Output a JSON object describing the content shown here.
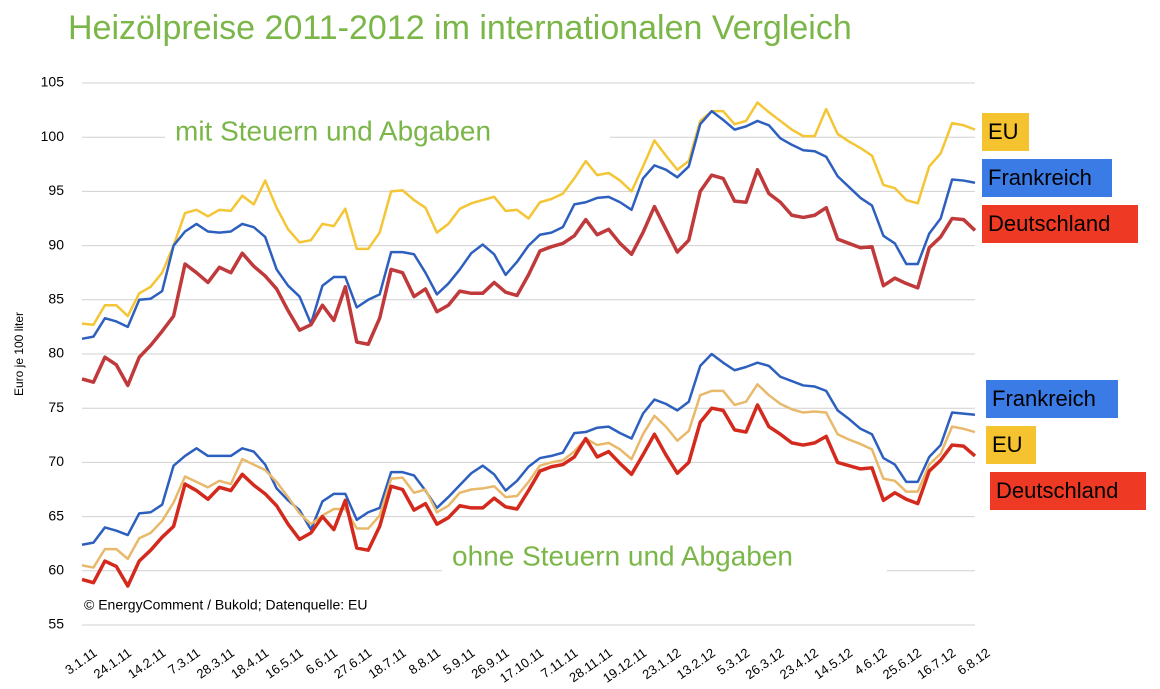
{
  "chart_data": {
    "type": "line",
    "title": "Heizölpreise 2011-2012 im internationalen Vergleich",
    "y_label": "Euro je 100 liter",
    "annotations": [
      "mit Steuern und Abgaben",
      "ohne Steuern und Abgaben",
      "© EnergyComment / Bukold; Datenquelle: EU"
    ],
    "categories": [
      "3.1.11",
      null,
      null,
      "24.1.11",
      null,
      null,
      "14.2.11",
      null,
      null,
      "7.3.11",
      null,
      null,
      "28.3.11",
      null,
      null,
      "18.4.11",
      null,
      null,
      "16.5.11",
      null,
      null,
      "6.6.11",
      null,
      null,
      "27.6.11",
      null,
      null,
      "18.7.11",
      null,
      null,
      "8.8.11",
      null,
      null,
      "5.9.11",
      null,
      null,
      "26.9.11",
      null,
      null,
      "17.10.11",
      null,
      null,
      "7.11.11",
      null,
      null,
      "28.11.11",
      null,
      null,
      "19.12.11",
      null,
      null,
      "23.1.12",
      null,
      null,
      "13.2.12",
      null,
      null,
      "5.3.12",
      null,
      null,
      "26.3.12",
      null,
      null,
      "23.4.12",
      null,
      null,
      "14.5.12",
      null,
      null,
      "4.6.12",
      null,
      null,
      "25.6.12",
      null,
      null,
      "16.7.12",
      null,
      null,
      "6.8.12"
    ],
    "ylim": [
      55,
      105
    ],
    "yticks": [
      55,
      60,
      65,
      70,
      75,
      80,
      85,
      90,
      95,
      100,
      105
    ],
    "grid": true,
    "series": [
      {
        "name": "EU",
        "color": "#f4c534",
        "legend_color": "#f5c230",
        "values": [
          82.8,
          82.7,
          84.5,
          84.5,
          83.5,
          85.6,
          86.2,
          87.5,
          90,
          93,
          93.3,
          92.7,
          93.3,
          93.2,
          94.6,
          93.8,
          96,
          93.5,
          91.5,
          90.3,
          90.5,
          92,
          91.8,
          93.4,
          89.7,
          89.7,
          91.2,
          95,
          95.1,
          94.2,
          93.5,
          91.2,
          92,
          93.4,
          93.9,
          94.2,
          94.5,
          93.2,
          93.3,
          92.5,
          94,
          94.3,
          94.8,
          96.2,
          97.8,
          96.5,
          96.7,
          96,
          95,
          97.3,
          99.7,
          98.3,
          97,
          97.8,
          101.5,
          102.4,
          102.4,
          101.2,
          101.5,
          103.2,
          102.3,
          101.5,
          100.7,
          100.1,
          100.1,
          102.6,
          100.3,
          99.6,
          99,
          98.3,
          95.6,
          95.3,
          94.2,
          93.9,
          97.3,
          98.5,
          101.3,
          101.1,
          100.7
        ]
      },
      {
        "name": "Frankreich",
        "color": "#2d5fbf",
        "legend_color": "#3b7be6",
        "values": [
          81.4,
          81.6,
          83.3,
          83,
          82.5,
          85,
          85.1,
          85.8,
          90,
          91.3,
          92,
          91.3,
          91.2,
          91.3,
          92,
          91.7,
          90.8,
          87.8,
          86.3,
          85.3,
          82.8,
          86.3,
          87.1,
          87.1,
          84.3,
          85,
          85.5,
          89.4,
          89.4,
          89.2,
          87.5,
          85.5,
          86.5,
          87.8,
          89.3,
          90.1,
          89.2,
          87.3,
          88.5,
          90,
          91,
          91.2,
          91.7,
          93.8,
          94,
          94.4,
          94.5,
          94,
          93.3,
          96.2,
          97.4,
          97,
          96.3,
          97.3,
          101.2,
          102.4,
          101.6,
          100.7,
          101,
          101.5,
          101.1,
          99.9,
          99.3,
          98.8,
          98.7,
          98.2,
          96.4,
          95.4,
          94.4,
          93.7,
          90.9,
          90.2,
          88.3,
          88.3,
          91.1,
          92.5,
          96.1,
          96,
          95.8
        ]
      },
      {
        "name": "Deutschland",
        "color": "#c0393b",
        "legend_color": "#ee3a24",
        "values": [
          77.7,
          77.4,
          79.7,
          79,
          77.1,
          79.7,
          80.8,
          82.1,
          83.5,
          88.3,
          87.5,
          86.6,
          88,
          87.5,
          89.3,
          88.1,
          87.2,
          86,
          84,
          82.2,
          82.7,
          84.5,
          83.1,
          86.2,
          81.1,
          80.9,
          83.3,
          87.8,
          87.5,
          85.3,
          86,
          83.9,
          84.5,
          85.8,
          85.6,
          85.6,
          86.6,
          85.7,
          85.4,
          87.3,
          89.5,
          89.9,
          90.2,
          90.9,
          92.4,
          91,
          91.5,
          90.2,
          89.2,
          91.2,
          93.6,
          91.5,
          89.4,
          90.5,
          95,
          96.5,
          96.2,
          94.1,
          94,
          97,
          94.8,
          94,
          92.8,
          92.6,
          92.8,
          93.5,
          90.6,
          90.2,
          89.8,
          89.9,
          86.3,
          87,
          86.5,
          86.1,
          89.8,
          90.8,
          92.5,
          92.4,
          91.4
        ]
      },
      {
        "name": "Frankreich",
        "color": "#2d5fbf",
        "legend_color": "#3b7be6",
        "values": [
          62.4,
          62.6,
          64,
          63.7,
          63.3,
          65.3,
          65.4,
          66.1,
          69.7,
          70.6,
          71.3,
          70.6,
          70.6,
          70.6,
          71.3,
          71,
          69.8,
          67.6,
          66.5,
          65.6,
          63.8,
          66.4,
          67.1,
          67.1,
          64.7,
          65.4,
          65.8,
          69.1,
          69.1,
          68.8,
          67.4,
          65.8,
          66.8,
          67.9,
          69,
          69.7,
          68.9,
          67.4,
          68.3,
          69.6,
          70.4,
          70.6,
          70.9,
          72.7,
          72.8,
          73.2,
          73.3,
          72.7,
          72.2,
          74.5,
          75.8,
          75.4,
          74.8,
          75.6,
          78.9,
          80,
          79.2,
          78.5,
          78.8,
          79.2,
          78.9,
          77.9,
          77.5,
          77.1,
          77.0,
          76.6,
          74.8,
          74,
          73.1,
          72.6,
          70.4,
          69.8,
          68.2,
          68.2,
          70.5,
          71.6,
          74.6,
          74.5,
          74.4
        ]
      },
      {
        "name": "EU",
        "color": "#e8b96b",
        "legend_color": "#f5c230",
        "values": [
          60.5,
          60.3,
          62,
          62,
          61.1,
          63,
          63.5,
          64.6,
          66.3,
          68.7,
          68.2,
          67.7,
          68.3,
          68,
          70.3,
          69.8,
          69.3,
          68.2,
          66.8,
          65.3,
          64.3,
          65.1,
          65.7,
          65.7,
          63.9,
          63.9,
          65.1,
          68.5,
          68.6,
          67.2,
          67.5,
          65.4,
          66,
          67.2,
          67.5,
          67.6,
          67.8,
          66.8,
          66.9,
          68.2,
          69.7,
          70,
          70.2,
          71,
          72.2,
          71.6,
          71.8,
          71.2,
          70.3,
          72.6,
          74.3,
          73.3,
          72,
          72.9,
          76.2,
          76.6,
          76.6,
          75.3,
          75.6,
          77.2,
          76.2,
          75.4,
          74.9,
          74.6,
          74.7,
          74.6,
          72.6,
          72.1,
          71.7,
          71.2,
          68.5,
          68.3,
          67.3,
          67.3,
          69.8,
          70.8,
          73.3,
          73.1,
          72.8
        ]
      },
      {
        "name": "Deutschland",
        "color": "#d42a1e",
        "legend_color": "#ee3a24",
        "values": [
          59.2,
          58.9,
          60.9,
          60.4,
          58.6,
          60.9,
          61.9,
          63.1,
          64.1,
          68,
          67.4,
          66.6,
          67.7,
          67.4,
          68.9,
          67.9,
          67.1,
          66,
          64.3,
          62.9,
          63.5,
          65,
          63.8,
          66.5,
          62.1,
          61.9,
          64.1,
          67.8,
          67.5,
          65.6,
          66.2,
          64.3,
          64.9,
          66,
          65.8,
          65.8,
          66.7,
          65.9,
          65.7,
          67.4,
          69.2,
          69.6,
          69.8,
          70.5,
          72.2,
          70.5,
          71,
          69.9,
          68.9,
          70.7,
          72.6,
          70.7,
          69,
          70,
          73.7,
          75,
          74.8,
          73,
          72.8,
          75.3,
          73.3,
          72.6,
          71.8,
          71.6,
          71.8,
          72.4,
          70,
          69.7,
          69.4,
          69.5,
          66.5,
          67.2,
          66.6,
          66.2,
          69.2,
          70.2,
          71.6,
          71.5,
          70.6
        ]
      }
    ]
  }
}
